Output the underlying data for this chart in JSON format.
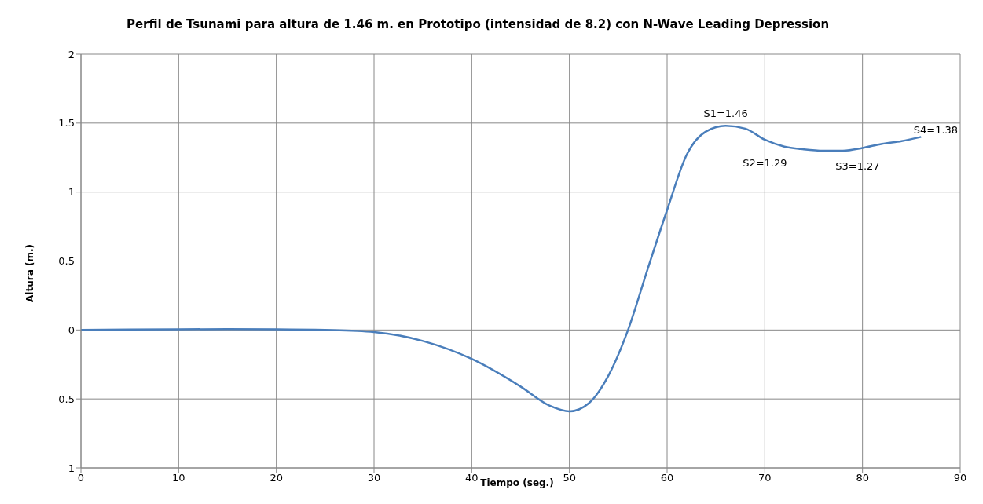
{
  "chart_data": {
    "type": "line",
    "title": "Perfil de Tsunami para altura de 1.46 m. en Prototipo (intensidad de 8.2) con N-Wave Leading Depression",
    "xlabel": "Tiempo (seg.)",
    "ylabel": "Altura (m.)",
    "x": [
      0,
      5,
      10,
      15,
      20,
      25,
      30,
      35,
      40,
      45,
      48,
      50,
      52,
      54,
      56,
      58,
      60,
      62,
      64,
      66,
      68,
      70,
      72,
      74,
      76,
      78,
      80,
      82,
      84,
      86
    ],
    "series": [
      {
        "color": "#4a7ebb",
        "values": [
          0,
          0.003,
          0.005,
          0.006,
          0.005,
          0,
          -0.015,
          -0.08,
          -0.21,
          -0.41,
          -0.55,
          -0.59,
          -0.53,
          -0.33,
          0,
          0.44,
          0.87,
          1.27,
          1.44,
          1.48,
          1.46,
          1.38,
          1.33,
          1.31,
          1.3,
          1.3,
          1.32,
          1.35,
          1.37,
          1.4
        ]
      }
    ],
    "xlim": [
      0,
      90
    ],
    "xticks": [
      0,
      10,
      20,
      30,
      40,
      50,
      60,
      70,
      80,
      90
    ],
    "ylim": [
      -1,
      2
    ],
    "yticks": [
      -1,
      -0.5,
      0,
      0.5,
      1,
      1.5,
      2
    ],
    "annotations": [
      "S1=1.46",
      "S2=1.29",
      "S3=1.27",
      "S4=1.38"
    ],
    "grid": true,
    "marker": "none",
    "line_style": "solid"
  }
}
